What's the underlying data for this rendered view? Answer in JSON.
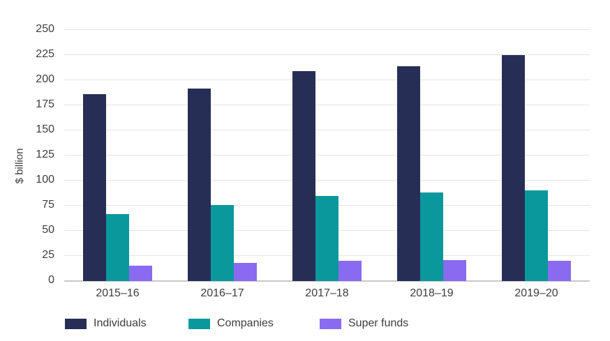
{
  "chart_data": {
    "type": "bar",
    "categories": [
      "2015–16",
      "2016–17",
      "2017–18",
      "2018–19",
      "2019–20"
    ],
    "series": [
      {
        "name": "Individuals",
        "color": "#272E56",
        "values": [
          186,
          192,
          209,
          214,
          225
        ]
      },
      {
        "name": "Companies",
        "color": "#0A989D",
        "values": [
          67,
          76,
          85,
          88,
          90
        ]
      },
      {
        "name": "Super funds",
        "color": "#8A6AF0",
        "values": [
          15,
          18,
          20,
          21,
          20
        ]
      }
    ],
    "ylabel": "$ billion",
    "ylim": [
      0,
      250
    ],
    "ytick_step": 25,
    "grid": true,
    "legend_position": "bottom"
  },
  "colors": {
    "gridline": "#E4E4E4",
    "axis_line": "#C8C8C8",
    "text": "#3D3D3D",
    "background": "#FFFFFF"
  }
}
